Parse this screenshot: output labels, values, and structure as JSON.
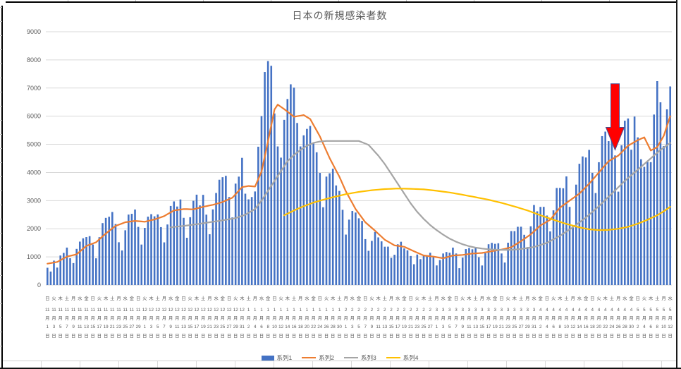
{
  "chart_data": {
    "type": "bar",
    "combo": "bar+3 lines",
    "title": "日本の新規感染者数",
    "xlabel": "",
    "ylabel": "",
    "ylim": [
      0,
      9000
    ],
    "yticks": [
      0,
      1000,
      2000,
      3000,
      4000,
      5000,
      6000,
      7000,
      8000,
      9000
    ],
    "grid": "horizontal",
    "legend_position": "bottom",
    "x_tick_interval_days": 2,
    "x_tick_labels": [
      "日11月1日",
      "火11月3日",
      "木11月5日",
      "土11月7日",
      "月11月9日",
      "水11月11日",
      "金11月13日",
      "日11月15日",
      "火11月17日",
      "木11月19日",
      "土11月21日",
      "月11月23日",
      "水11月25日",
      "金11月27日",
      "日11月29日",
      "火12月1日",
      "木12月3日",
      "土12月5日",
      "月12月7日",
      "水12月9日",
      "金12月11日",
      "日12月13日",
      "火12月15日",
      "木12月17日",
      "土12月19日",
      "月12月21日",
      "水12月23日",
      "金12月25日",
      "日12月27日",
      "火12月29日",
      "木12月31日",
      "土1月2日",
      "月1月4日",
      "水1月6日",
      "金1月8日",
      "日1月10日",
      "火1月12日",
      "木1月14日",
      "土1月16日",
      "月1月18日",
      "水1月20日",
      "金1月22日",
      "日1月24日",
      "火1月26日",
      "木1月28日",
      "土1月30日",
      "月2月1日",
      "水2月3日",
      "金2月5日",
      "日2月7日",
      "火2月9日",
      "木2月11日",
      "土2月13日",
      "月2月15日",
      "水2月17日",
      "金2月19日",
      "日2月21日",
      "火2月23日",
      "木2月25日",
      "土2月27日",
      "月3月1日",
      "水3月3日",
      "金3月5日",
      "日3月7日",
      "火3月9日",
      "木3月11日",
      "土3月13日",
      "月3月15日",
      "水3月17日",
      "金3月19日",
      "日3月21日",
      "火3月23日",
      "木3月25日",
      "土3月27日",
      "月3月29日",
      "水3月31日",
      "金4月2日",
      "日4月4日",
      "火4月6日",
      "木4月8日",
      "土4月10日",
      "月4月12日",
      "水4月14日",
      "金4月16日",
      "日4月18日",
      "火4月20日",
      "木4月22日",
      "土4月24日",
      "月4月26日",
      "水4月28日",
      "金4月30日",
      "日5月2日",
      "火5月4日",
      "木5月6日",
      "土5月8日",
      "月5月10日",
      "水5月12日"
    ],
    "series": [
      {
        "name": "系列1",
        "type": "bar",
        "color": "#4472C4",
        "values": [
          614,
          480,
          867,
          620,
          1050,
          1141,
          1331,
          952,
          780,
          1284,
          1543,
          1661,
          1704,
          1738,
          1440,
          950,
          1699,
          2201,
          2386,
          2427,
          2596,
          2168,
          1520,
          1229,
          1946,
          2504,
          2531,
          2684,
          2066,
          1438,
          2030,
          2430,
          2518,
          2442,
          2508,
          2058,
          1516,
          2152,
          2810,
          2972,
          2790,
          3041,
          2388,
          1680,
          2410,
          2994,
          3211,
          2829,
          3205,
          2501,
          1806,
          2688,
          3271,
          3742,
          3832,
          3881,
          3127,
          2403,
          3604,
          3852,
          4520,
          3246,
          3045,
          3127,
          3325,
          4915,
          6004,
          7570,
          7958,
          7790,
          6097,
          4925,
          4527,
          5870,
          6610,
          7133,
          7014,
          5759,
          4925,
          5320,
          5549,
          5653,
          5045,
          4717,
          3985,
          2764,
          3853,
          3971,
          4133,
          3539,
          3344,
          2673,
          1792,
          2324,
          2631,
          2576,
          2372,
          2277,
          1631,
          1216,
          1570,
          1887,
          1693,
          1552,
          1362,
          1364,
          965,
          1076,
          1448,
          1538,
          1301,
          1234,
          1032,
          739,
          1084,
          920,
          1076,
          1029,
          1148,
          999,
          697,
          888,
          1121,
          1173,
          1148,
          1330,
          1121,
          599,
          974,
          1277,
          1316,
          1271,
          1320,
          989,
          695,
          1131,
          1449,
          1499,
          1464,
          1485,
          1121,
          800,
          1504,
          1917,
          1917,
          2070,
          2072,
          1785,
          1348,
          2087,
          2843,
          2620,
          2777,
          2778,
          2470,
          1906,
          2654,
          3449,
          3451,
          3438,
          3859,
          2777,
          2091,
          3568,
          4309,
          4570,
          4532,
          4802,
          3988,
          3269,
          4364,
          5291,
          5452,
          5113,
          5605,
          4605,
          3319,
          4965,
          5839,
          5918,
          4808,
          5986,
          5247,
          4470,
          4199,
          4373,
          4366,
          6058,
          7245,
          6493,
          4938,
          6243,
          7057
        ]
      },
      {
        "name": "系列2",
        "type": "line",
        "color": "#ED7D31",
        "keypoints": [
          [
            0,
            760
          ],
          [
            3,
            820
          ],
          [
            6,
            1010
          ],
          [
            9,
            1090
          ],
          [
            12,
            1390
          ],
          [
            15,
            1520
          ],
          [
            18,
            1830
          ],
          [
            21,
            2100
          ],
          [
            24,
            2230
          ],
          [
            27,
            2280
          ],
          [
            30,
            2250
          ],
          [
            33,
            2330
          ],
          [
            36,
            2450
          ],
          [
            39,
            2650
          ],
          [
            42,
            2700
          ],
          [
            45,
            2690
          ],
          [
            48,
            2780
          ],
          [
            51,
            2850
          ],
          [
            54,
            2950
          ],
          [
            57,
            3100
          ],
          [
            60,
            3480
          ],
          [
            62,
            3520
          ],
          [
            64,
            3500
          ],
          [
            66,
            4030
          ],
          [
            68,
            5110
          ],
          [
            70,
            6240
          ],
          [
            71,
            6410
          ],
          [
            73,
            6250
          ],
          [
            76,
            5980
          ],
          [
            79,
            6040
          ],
          [
            81,
            5900
          ],
          [
            84,
            5280
          ],
          [
            87,
            4510
          ],
          [
            90,
            3850
          ],
          [
            92,
            3330
          ],
          [
            95,
            2700
          ],
          [
            98,
            2230
          ],
          [
            101,
            1930
          ],
          [
            104,
            1610
          ],
          [
            107,
            1410
          ],
          [
            110,
            1360
          ],
          [
            113,
            1200
          ],
          [
            116,
            1050
          ],
          [
            119,
            1010
          ],
          [
            122,
            950
          ],
          [
            125,
            1050
          ],
          [
            128,
            1070
          ],
          [
            131,
            1120
          ],
          [
            134,
            1140
          ],
          [
            137,
            1200
          ],
          [
            140,
            1260
          ],
          [
            143,
            1340
          ],
          [
            146,
            1560
          ],
          [
            149,
            1800
          ],
          [
            152,
            2120
          ],
          [
            155,
            2320
          ],
          [
            158,
            2750
          ],
          [
            161,
            3000
          ],
          [
            164,
            3250
          ],
          [
            167,
            3600
          ],
          [
            170,
            4000
          ],
          [
            173,
            4400
          ],
          [
            176,
            4600
          ],
          [
            179,
            4950
          ],
          [
            182,
            5150
          ],
          [
            184,
            5250
          ],
          [
            186,
            4780
          ],
          [
            188,
            4900
          ],
          [
            190,
            5300
          ],
          [
            192,
            6000
          ]
        ]
      },
      {
        "name": "系列3",
        "type": "line",
        "color": "#A5A5A5",
        "keypoints": [
          [
            38,
            2050
          ],
          [
            42,
            2100
          ],
          [
            46,
            2160
          ],
          [
            50,
            2230
          ],
          [
            54,
            2300
          ],
          [
            58,
            2380
          ],
          [
            61,
            2500
          ],
          [
            64,
            2700
          ],
          [
            66,
            3000
          ],
          [
            68,
            3350
          ],
          [
            70,
            3700
          ],
          [
            72,
            4050
          ],
          [
            74,
            4400
          ],
          [
            76,
            4620
          ],
          [
            78,
            4800
          ],
          [
            80,
            4950
          ],
          [
            82,
            5050
          ],
          [
            84,
            5100
          ],
          [
            86,
            5120
          ],
          [
            96,
            5120
          ],
          [
            99,
            4980
          ],
          [
            102,
            4600
          ],
          [
            104,
            4300
          ],
          [
            106,
            3950
          ],
          [
            108,
            3600
          ],
          [
            110,
            3250
          ],
          [
            112,
            2900
          ],
          [
            114,
            2600
          ],
          [
            116,
            2350
          ],
          [
            118,
            2130
          ],
          [
            120,
            1950
          ],
          [
            122,
            1790
          ],
          [
            124,
            1650
          ],
          [
            126,
            1540
          ],
          [
            128,
            1450
          ],
          [
            130,
            1380
          ],
          [
            132,
            1330
          ],
          [
            134,
            1295
          ],
          [
            136,
            1270
          ],
          [
            139,
            1250
          ],
          [
            143,
            1250
          ],
          [
            146,
            1280
          ],
          [
            150,
            1350
          ],
          [
            154,
            1500
          ],
          [
            158,
            1750
          ],
          [
            162,
            2050
          ],
          [
            166,
            2400
          ],
          [
            170,
            2800
          ],
          [
            174,
            3250
          ],
          [
            178,
            3700
          ],
          [
            182,
            4100
          ],
          [
            186,
            4500
          ],
          [
            189,
            4800
          ],
          [
            192,
            5050
          ]
        ]
      },
      {
        "name": "系列4",
        "type": "line",
        "color": "#FFC000",
        "keypoints": [
          [
            73,
            2480
          ],
          [
            76,
            2650
          ],
          [
            79,
            2800
          ],
          [
            82,
            2930
          ],
          [
            85,
            3030
          ],
          [
            88,
            3120
          ],
          [
            92,
            3230
          ],
          [
            96,
            3310
          ],
          [
            100,
            3370
          ],
          [
            104,
            3410
          ],
          [
            108,
            3430
          ],
          [
            112,
            3420
          ],
          [
            116,
            3400
          ],
          [
            120,
            3350
          ],
          [
            124,
            3290
          ],
          [
            128,
            3210
          ],
          [
            132,
            3120
          ],
          [
            136,
            3030
          ],
          [
            140,
            2920
          ],
          [
            144,
            2790
          ],
          [
            148,
            2650
          ],
          [
            152,
            2480
          ],
          [
            156,
            2320
          ],
          [
            160,
            2170
          ],
          [
            164,
            2050
          ],
          [
            167,
            1980
          ],
          [
            170,
            1950
          ],
          [
            173,
            1960
          ],
          [
            176,
            2000
          ],
          [
            179,
            2070
          ],
          [
            182,
            2180
          ],
          [
            185,
            2320
          ],
          [
            188,
            2480
          ],
          [
            190,
            2620
          ],
          [
            192,
            2780
          ]
        ]
      }
    ],
    "annotation": {
      "shape": "block-arrow-down",
      "fill": "#FF0000",
      "outline": "#4B4B8F",
      "day_index": 175,
      "top_value": 7150,
      "tip_value": 4800
    }
  },
  "style": {
    "axis_text_color": "#595959",
    "grid_color": "#D9D9D9",
    "title_color": "#595959"
  }
}
